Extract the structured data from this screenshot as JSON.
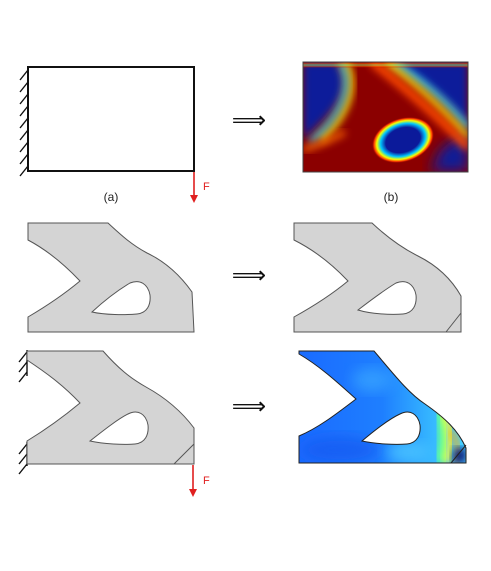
{
  "panels": {
    "a": {
      "caption": "(a)",
      "force_label": "F"
    },
    "b": {
      "caption": "(b)"
    },
    "d": {
      "force_label": "F"
    }
  },
  "arrow_glyph": "⟹",
  "colors": {
    "boundary": "#111111",
    "force": "#e02020",
    "part_fill": "#d4d4d4",
    "part_stroke": "#555555",
    "density_low": "#0a1a8f",
    "density_high": "#8b0000"
  },
  "icons": [
    "fixed-support-hatch-icon",
    "force-arrow-icon",
    "implies-arrow-icon"
  ]
}
